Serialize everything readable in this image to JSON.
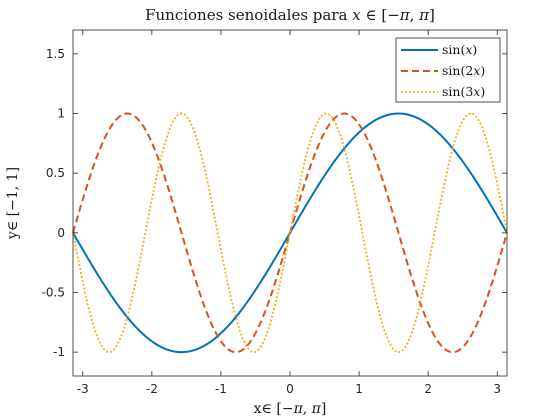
{
  "chart_data": {
    "type": "line",
    "title": {
      "prefix": "Funciones senoidales para ",
      "var": "x",
      "relation": " ∈ [−",
      "pi1": "π",
      "comma": ", ",
      "pi2": "π",
      "close": "]"
    },
    "xlabel": {
      "prefix": "x∈ [−",
      "pi1": "π",
      "comma": ", ",
      "pi2": "π",
      "close": "]"
    },
    "ylabel": {
      "prefix": "y∈ [−",
      "one": "1",
      "comma": ", ",
      "one2": "1",
      "close": "]"
    },
    "xlim": [
      -3.14159,
      3.14159
    ],
    "ylim": [
      -1.2,
      1.7
    ],
    "xticks": [
      -3,
      -2,
      -1,
      0,
      1,
      2,
      3
    ],
    "xtick_labels": [
      "-3",
      "-2",
      "-1",
      "0",
      "1",
      "2",
      "3"
    ],
    "yticks": [
      -1,
      -0.5,
      0,
      0.5,
      1,
      1.5
    ],
    "ytick_labels": [
      "-1",
      "-0.5",
      "0",
      "0.5",
      "1",
      "1.5"
    ],
    "grid": false,
    "legend_position": "top-right",
    "series": [
      {
        "name": "sin(x)",
        "func": "sin",
        "freq": 1,
        "color": "#0072BD",
        "style": "solid",
        "legend": {
          "fn": "sin(",
          "arg": "x",
          "close": ")"
        }
      },
      {
        "name": "sin(2x)",
        "func": "sin",
        "freq": 2,
        "color": "#D95319",
        "style": "dashed",
        "legend": {
          "fn": "sin(2",
          "arg": "x",
          "close": ")"
        }
      },
      {
        "name": "sin(3x)",
        "func": "sin",
        "freq": 3,
        "color": "#EDB120",
        "style": "dotted",
        "legend": {
          "fn": "sin(3",
          "arg": "x",
          "close": ")"
        }
      }
    ]
  }
}
